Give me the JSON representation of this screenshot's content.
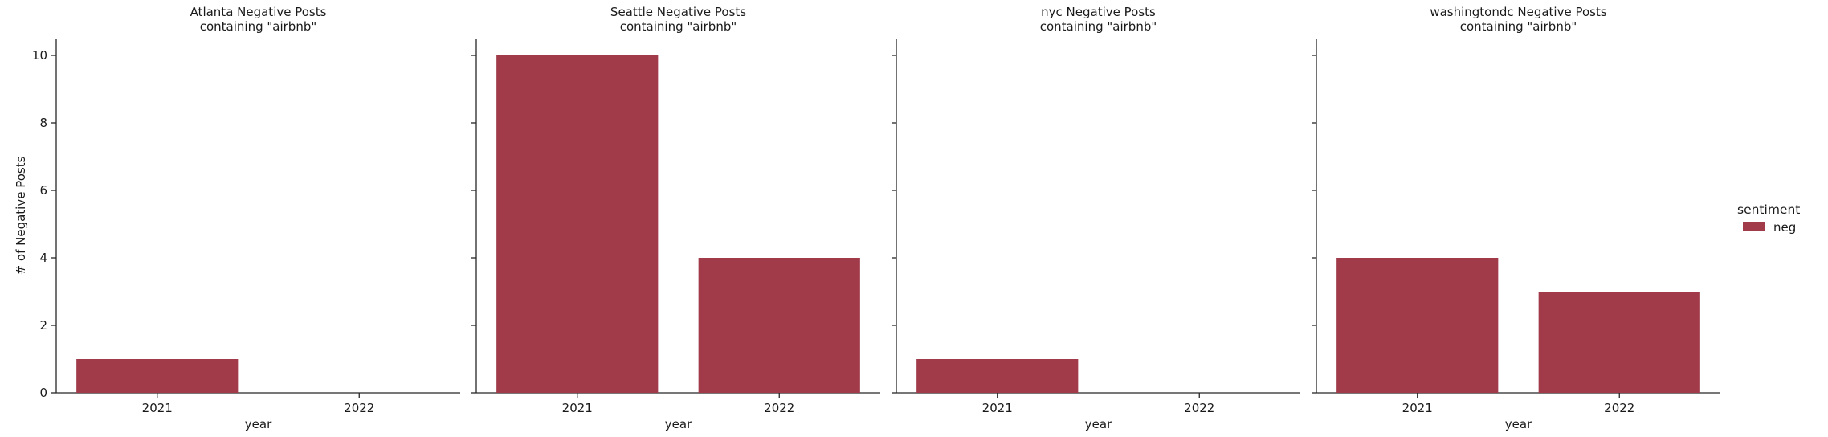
{
  "chart_data": [
    {
      "type": "bar",
      "title": "Atlanta Negative Posts\ncontaining \"airbnb\"",
      "categories": [
        "2021",
        "2022"
      ],
      "series": [
        {
          "name": "neg",
          "values": [
            1,
            0
          ]
        }
      ],
      "xlabel": "year",
      "ylabel": "# of Negative Posts",
      "ylim": [
        0,
        10.5
      ],
      "yticks": [
        0,
        2,
        4,
        6,
        8,
        10
      ]
    },
    {
      "type": "bar",
      "title": "Seattle Negative Posts\ncontaining \"airbnb\"",
      "categories": [
        "2021",
        "2022"
      ],
      "series": [
        {
          "name": "neg",
          "values": [
            10,
            4
          ]
        }
      ],
      "xlabel": "year",
      "ylabel": "",
      "ylim": [
        0,
        10.5
      ],
      "yticks": [
        0,
        2,
        4,
        6,
        8,
        10
      ]
    },
    {
      "type": "bar",
      "title": "nyc Negative Posts\ncontaining \"airbnb\"",
      "categories": [
        "2021",
        "2022"
      ],
      "series": [
        {
          "name": "neg",
          "values": [
            1,
            0
          ]
        }
      ],
      "xlabel": "year",
      "ylabel": "",
      "ylim": [
        0,
        10.5
      ],
      "yticks": [
        0,
        2,
        4,
        6,
        8,
        10
      ]
    },
    {
      "type": "bar",
      "title": "washingtondc Negative Posts\ncontaining \"airbnb\"",
      "categories": [
        "2021",
        "2022"
      ],
      "series": [
        {
          "name": "neg",
          "values": [
            4,
            3
          ]
        }
      ],
      "xlabel": "year",
      "ylabel": "",
      "ylim": [
        0,
        10.5
      ],
      "yticks": [
        0,
        2,
        4,
        6,
        8,
        10
      ]
    }
  ],
  "legend": {
    "title": "sentiment",
    "placement": "right",
    "items": [
      {
        "label": "neg",
        "color": "#a13b4a"
      }
    ]
  },
  "colors": {
    "bar": "#a13b4a"
  }
}
